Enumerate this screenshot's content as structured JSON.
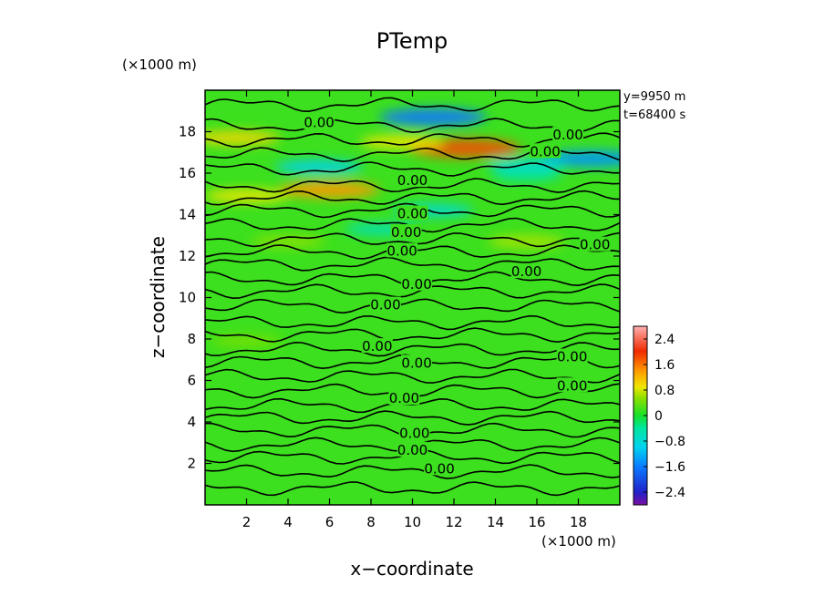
{
  "chart_data": {
    "type": "heatmap",
    "title": "PTemp",
    "xlabel": "x−coordinate",
    "ylabel": "z−coordinate",
    "x_unit": "(×1000 m)",
    "y_unit": "(×1000 m)",
    "annotations": [
      "y=9950 m",
      "t=68400 s"
    ],
    "xlim": [
      0,
      20
    ],
    "ylim": [
      0,
      20
    ],
    "x_ticks": [
      2,
      4,
      6,
      8,
      10,
      12,
      14,
      16,
      18
    ],
    "y_ticks": [
      2,
      4,
      6,
      8,
      10,
      12,
      14,
      16,
      18
    ],
    "x_tick_labels": [
      "2",
      "4",
      "6",
      "8",
      "10",
      "12",
      "14",
      "16",
      "18"
    ],
    "y_tick_labels": [
      "2",
      "4",
      "6",
      "8",
      "10",
      "12",
      "14",
      "16",
      "18"
    ],
    "colorbar": {
      "min": -2.8,
      "max": 2.8,
      "ticks": [
        2.4,
        1.6,
        0.8,
        0,
        -0.8,
        -1.6,
        -2.4
      ],
      "tick_labels": [
        "2.4",
        "1.6",
        "0.8",
        "0",
        "−0.8",
        "−1.6",
        "−2.4"
      ]
    },
    "contour_level_label": "0.00",
    "contour_labels": [
      {
        "x": 5.5,
        "z": 18.4,
        "text": "0.00"
      },
      {
        "x": 17.5,
        "z": 17.8,
        "text": "0.00"
      },
      {
        "x": 16.4,
        "z": 17.0,
        "text": "0.00"
      },
      {
        "x": 10.0,
        "z": 15.6,
        "text": "0.00"
      },
      {
        "x": 10.0,
        "z": 14.0,
        "text": "0.00"
      },
      {
        "x": 9.7,
        "z": 13.1,
        "text": "0.00"
      },
      {
        "x": 9.5,
        "z": 12.2,
        "text": "0.00"
      },
      {
        "x": 18.8,
        "z": 12.5,
        "text": "0.00"
      },
      {
        "x": 15.5,
        "z": 11.2,
        "text": "0.00"
      },
      {
        "x": 10.2,
        "z": 10.6,
        "text": "0.00"
      },
      {
        "x": 8.7,
        "z": 9.6,
        "text": "0.00"
      },
      {
        "x": 8.3,
        "z": 7.6,
        "text": "0.00"
      },
      {
        "x": 17.7,
        "z": 7.1,
        "text": "0.00"
      },
      {
        "x": 10.2,
        "z": 6.8,
        "text": "0.00"
      },
      {
        "x": 17.7,
        "z": 5.7,
        "text": "0.00"
      },
      {
        "x": 9.6,
        "z": 5.1,
        "text": "0.00"
      },
      {
        "x": 10.1,
        "z": 3.4,
        "text": "0.00"
      },
      {
        "x": 10.0,
        "z": 2.6,
        "text": "0.00"
      },
      {
        "x": 11.3,
        "z": 1.7,
        "text": "0.00"
      }
    ],
    "warm_spots": [
      {
        "x": 12.5,
        "z": 17.2,
        "value": 1.8
      },
      {
        "x": 6.0,
        "z": 15.2,
        "value": 1.4
      },
      {
        "x": 1.5,
        "z": 17.7,
        "value": 1.0
      },
      {
        "x": 2.0,
        "z": 14.9,
        "value": 0.9
      },
      {
        "x": 9.5,
        "z": 17.5,
        "value": 0.9
      },
      {
        "x": 15.5,
        "z": 12.7,
        "value": 0.7
      },
      {
        "x": 4.0,
        "z": 12.7,
        "value": 0.6
      },
      {
        "x": 2.0,
        "z": 7.9,
        "value": 0.5
      }
    ],
    "cool_spots": [
      {
        "x": 11.0,
        "z": 18.7,
        "value": -1.6
      },
      {
        "x": 18.6,
        "z": 16.7,
        "value": -1.4
      },
      {
        "x": 5.5,
        "z": 16.3,
        "value": -1.0
      },
      {
        "x": 11.0,
        "z": 14.2,
        "value": -0.8
      },
      {
        "x": 15.5,
        "z": 16.4,
        "value": -0.8
      },
      {
        "x": 8.5,
        "z": 13.3,
        "value": -0.6
      },
      {
        "x": 15.5,
        "z": 15.9,
        "value": -0.5
      }
    ]
  }
}
